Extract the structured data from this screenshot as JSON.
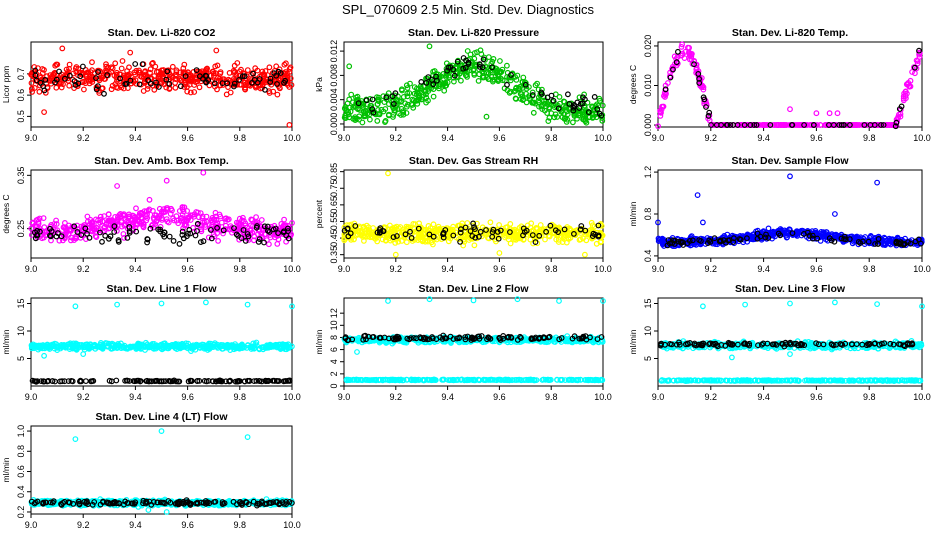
{
  "page": {
    "title": "SPL_070609  2.5 Min. Std. Dev. Diagnostics"
  },
  "chart_data": [
    {
      "type": "scatter",
      "title": "Stan. Dev. Li-820 CO2",
      "ylabel": "Licor ppm",
      "xlim": [
        9.0,
        10.0
      ],
      "ylim": [
        0.45,
        0.85
      ],
      "xticks": [
        9.0,
        9.2,
        9.4,
        9.6,
        9.8,
        10.0
      ],
      "xtick_labels": [
        "9.0",
        "9.2",
        "9.4",
        "9.6",
        "9.8",
        "10.0"
      ],
      "yticks": [
        0.5,
        0.6,
        0.7
      ],
      "ytick_labels": [
        "0.5",
        "0.6",
        "0.7"
      ],
      "series": [
        {
          "color": "#ff0000",
          "n": 520,
          "kind": "band",
          "center": 0.68,
          "spread": 0.06
        },
        {
          "color": "#000000",
          "n": 70,
          "kind": "band",
          "center": 0.67,
          "spread": 0.06
        }
      ],
      "outliers": [
        [
          9.12,
          0.82
        ],
        [
          9.05,
          0.52
        ],
        [
          9.38,
          0.8
        ],
        [
          9.71,
          0.81
        ],
        [
          9.99,
          0.46
        ]
      ]
    },
    {
      "type": "scatter",
      "title": "Stan. Dev. Li-820 Pressure",
      "ylabel": "kPa",
      "xlim": [
        9.0,
        10.0
      ],
      "ylim": [
        -0.0005,
        0.0135
      ],
      "xticks": [
        9.0,
        9.2,
        9.4,
        9.6,
        9.8,
        10.0
      ],
      "xtick_labels": [
        "9.0",
        "9.2",
        "9.4",
        "9.6",
        "9.8",
        "10.0"
      ],
      "yticks": [
        0,
        0.004,
        0.008,
        0.012
      ],
      "ytick_labels": [
        "0.000",
        "0.004",
        "0.008",
        "0.012"
      ],
      "series": [
        {
          "color": "#00c000",
          "n": 520,
          "kind": "hump",
          "base": 0.002,
          "peak": 0.0075,
          "spread": 0.0022,
          "floor": 0.0
        },
        {
          "color": "#000000",
          "n": 60,
          "kind": "hump",
          "base": 0.003,
          "peak": 0.007,
          "spread": 0.0015,
          "floor": 0.0
        }
      ],
      "outliers": [
        [
          9.33,
          0.0128
        ],
        [
          9.02,
          0.0095
        ],
        [
          9.53,
          0.0115
        ],
        [
          9.55,
          0.0012
        ]
      ]
    },
    {
      "type": "scatter",
      "title": "Stan. Dev. Li-820 Temp.",
      "ylabel": "degrees C",
      "xlim": [
        9.0,
        10.0
      ],
      "ylim": [
        -0.0005,
        0.021
      ],
      "xticks": [
        9.0,
        9.2,
        9.4,
        9.6,
        9.8,
        10.0
      ],
      "xtick_labels": [
        "9.0",
        "9.2",
        "9.4",
        "9.6",
        "9.8",
        "10.0"
      ],
      "yticks": [
        0,
        0.01,
        0.02
      ],
      "ytick_labels": [
        "0.000",
        "0.010",
        "0.020"
      ],
      "series": [
        {
          "color": "#ff00ff",
          "n": 360,
          "kind": "temp"
        },
        {
          "color": "#000000",
          "n": 50,
          "kind": "temp"
        }
      ],
      "outliers": [
        [
          9.6,
          0.003
        ],
        [
          9.65,
          0.003
        ],
        [
          9.68,
          0.003
        ],
        [
          9.5,
          0.004
        ]
      ]
    },
    {
      "type": "scatter",
      "title": "Stan. Dev. Amb. Box Temp.",
      "ylabel": "degrees C",
      "xlim": [
        9.0,
        10.0
      ],
      "ylim": [
        0.195,
        0.36
      ],
      "xticks": [
        9.0,
        9.2,
        9.4,
        9.6,
        9.8,
        10.0
      ],
      "xtick_labels": [
        "9.0",
        "9.2",
        "9.4",
        "9.6",
        "9.8",
        "10.0"
      ],
      "yticks": [
        0.25,
        0.35
      ],
      "ytick_labels": [
        "0.25",
        "0.35"
      ],
      "series": [
        {
          "color": "#ff00ff",
          "n": 480,
          "kind": "hump",
          "base": 0.245,
          "peak": 0.03,
          "spread": 0.022,
          "floor": 0.2
        },
        {
          "color": "#000000",
          "n": 90,
          "kind": "band",
          "center": 0.24,
          "spread": 0.018
        }
      ],
      "outliers": [
        [
          9.33,
          0.33
        ],
        [
          9.66,
          0.355
        ],
        [
          9.52,
          0.34
        ]
      ]
    },
    {
      "type": "scatter",
      "title": "Stan. Dev. Gas Stream RH",
      "ylabel": "percent",
      "xlim": [
        9.0,
        10.0
      ],
      "ylim": [
        0.33,
        0.86
      ],
      "xticks": [
        9.0,
        9.2,
        9.4,
        9.6,
        9.8,
        10.0
      ],
      "xtick_labels": [
        "9.0",
        "9.2",
        "9.4",
        "9.6",
        "9.8",
        "10.0"
      ],
      "yticks": [
        0.35,
        0.45,
        0.55,
        0.65,
        0.75,
        0.85
      ],
      "ytick_labels": [
        "0.35",
        "0.45",
        "0.55",
        "0.65",
        "0.75",
        "0.85"
      ],
      "series": [
        {
          "color": "#ffff00",
          "n": 560,
          "kind": "band",
          "center": 0.48,
          "spread": 0.055
        },
        {
          "color": "#000000",
          "n": 70,
          "kind": "band",
          "center": 0.48,
          "spread": 0.05
        }
      ],
      "outliers": [
        [
          9.17,
          0.84
        ],
        [
          9.2,
          0.35
        ],
        [
          9.6,
          0.36
        ],
        [
          9.93,
          0.35
        ]
      ]
    },
    {
      "type": "scatter",
      "title": "Stan. Dev. Sample Flow",
      "ylabel": "ml/min",
      "xlim": [
        9.0,
        10.0
      ],
      "ylim": [
        0.38,
        1.22
      ],
      "xticks": [
        9.0,
        9.2,
        9.4,
        9.6,
        9.8,
        10.0
      ],
      "xtick_labels": [
        "9.0",
        "9.2",
        "9.4",
        "9.6",
        "9.8",
        "10.0"
      ],
      "yticks": [
        0.4,
        0.8,
        1.2
      ],
      "ytick_labels": [
        "0.4",
        "0.8",
        "1.2"
      ],
      "series": [
        {
          "color": "#0000ff",
          "n": 560,
          "kind": "hump",
          "base": 0.53,
          "peak": 0.09,
          "spread": 0.04,
          "floor": 0.42
        },
        {
          "color": "#000000",
          "n": 80,
          "kind": "hump",
          "base": 0.53,
          "peak": 0.07,
          "spread": 0.03,
          "floor": 0.42
        }
      ],
      "outliers": [
        [
          9.5,
          1.16
        ],
        [
          9.83,
          1.1
        ],
        [
          9.15,
          0.98
        ],
        [
          9.0,
          0.72
        ],
        [
          9.17,
          0.72
        ],
        [
          9.67,
          0.8
        ]
      ]
    },
    {
      "type": "scatter",
      "title": "Stan. Dev. Line 1 Flow",
      "ylabel": "ml/min",
      "xlim": [
        9.0,
        10.0
      ],
      "ylim": [
        0,
        16
      ],
      "xticks": [
        9.0,
        9.2,
        9.4,
        9.6,
        9.8,
        10.0
      ],
      "xtick_labels": [
        "9.0",
        "9.2",
        "9.4",
        "9.6",
        "9.8",
        "10.0"
      ],
      "yticks": [
        5,
        10,
        15
      ],
      "ytick_labels": [
        "5",
        "10",
        "15"
      ],
      "series": [
        {
          "color": "#00ffff",
          "n": 480,
          "kind": "band",
          "center": 7.2,
          "spread": 0.55
        },
        {
          "color": "#000000",
          "n": 130,
          "kind": "band",
          "center": 0.9,
          "spread": 0.1
        }
      ],
      "outliers": [
        [
          9.17,
          14.5
        ],
        [
          9.33,
          14.8
        ],
        [
          9.5,
          15.0
        ],
        [
          9.67,
          15.2
        ],
        [
          9.83,
          14.8
        ],
        [
          10.0,
          14.5
        ],
        [
          9.05,
          5.5
        ],
        [
          9.2,
          5.8
        ]
      ]
    },
    {
      "type": "scatter",
      "title": "Stan. Dev. Line 2 Flow",
      "ylabel": "ml/min",
      "xlim": [
        9.0,
        10.0
      ],
      "ylim": [
        0,
        14.5
      ],
      "xticks": [
        9.0,
        9.2,
        9.4,
        9.6,
        9.8,
        10.0
      ],
      "xtick_labels": [
        "9.0",
        "9.2",
        "9.4",
        "9.6",
        "9.8",
        "10.0"
      ],
      "yticks": [
        0,
        2,
        4,
        6,
        8,
        10,
        12
      ],
      "ytick_labels": [
        "0",
        "2",
        "4",
        "6",
        "8",
        "10",
        "12"
      ],
      "series": [
        {
          "color": "#00ffff",
          "n": 420,
          "kind": "band",
          "center": 7.6,
          "spread": 0.45
        },
        {
          "color": "#00ffff",
          "n": 260,
          "kind": "band",
          "center": 1.0,
          "spread": 0.07
        },
        {
          "color": "#000000",
          "n": 110,
          "kind": "band",
          "center": 7.9,
          "spread": 0.3
        }
      ],
      "outliers": [
        [
          9.17,
          14.0
        ],
        [
          9.33,
          14.3
        ],
        [
          9.5,
          14.1
        ],
        [
          9.67,
          14.3
        ],
        [
          9.83,
          14.0
        ],
        [
          10.0,
          14.0
        ],
        [
          9.05,
          5.6
        ]
      ]
    },
    {
      "type": "scatter",
      "title": "Stan. Dev. Line 3 Flow",
      "ylabel": "ml/min",
      "xlim": [
        9.0,
        10.0
      ],
      "ylim": [
        0,
        16
      ],
      "xticks": [
        9.0,
        9.2,
        9.4,
        9.6,
        9.8,
        10.0
      ],
      "xtick_labels": [
        "9.0",
        "9.2",
        "9.4",
        "9.6",
        "9.8",
        "10.0"
      ],
      "yticks": [
        5,
        10,
        15
      ],
      "ytick_labels": [
        "5",
        "10",
        "15"
      ],
      "series": [
        {
          "color": "#00ffff",
          "n": 430,
          "kind": "band",
          "center": 7.4,
          "spread": 0.55
        },
        {
          "color": "#00ffff",
          "n": 260,
          "kind": "band",
          "center": 1.0,
          "spread": 0.08
        },
        {
          "color": "#000000",
          "n": 110,
          "kind": "band",
          "center": 7.6,
          "spread": 0.3
        }
      ],
      "outliers": [
        [
          9.17,
          14.5
        ],
        [
          9.33,
          14.8
        ],
        [
          9.5,
          15.0
        ],
        [
          9.67,
          15.2
        ],
        [
          9.83,
          14.9
        ],
        [
          10.0,
          14.5
        ],
        [
          9.28,
          5.2
        ],
        [
          9.5,
          5.8
        ]
      ]
    },
    {
      "type": "scatter",
      "title": "Stan. Dev. Line 4 (LT) Flow",
      "ylabel": "ml/min",
      "xlim": [
        9.0,
        10.0
      ],
      "ylim": [
        0.18,
        1.05
      ],
      "xticks": [
        9.0,
        9.2,
        9.4,
        9.6,
        9.8,
        10.0
      ],
      "xtick_labels": [
        "9.0",
        "9.2",
        "9.4",
        "9.6",
        "9.8",
        "10.0"
      ],
      "yticks": [
        0.2,
        0.4,
        0.6,
        0.8,
        1.0
      ],
      "ytick_labels": [
        "0.2",
        "0.4",
        "0.6",
        "0.8",
        "1.0"
      ],
      "series": [
        {
          "color": "#00ffff",
          "n": 560,
          "kind": "band",
          "center": 0.29,
          "spread": 0.025
        },
        {
          "color": "#000000",
          "n": 140,
          "kind": "band",
          "center": 0.29,
          "spread": 0.02
        }
      ],
      "outliers": [
        [
          9.17,
          0.92
        ],
        [
          9.5,
          1.0
        ],
        [
          9.83,
          0.94
        ],
        [
          9.45,
          0.22
        ],
        [
          9.52,
          0.2
        ]
      ]
    }
  ]
}
